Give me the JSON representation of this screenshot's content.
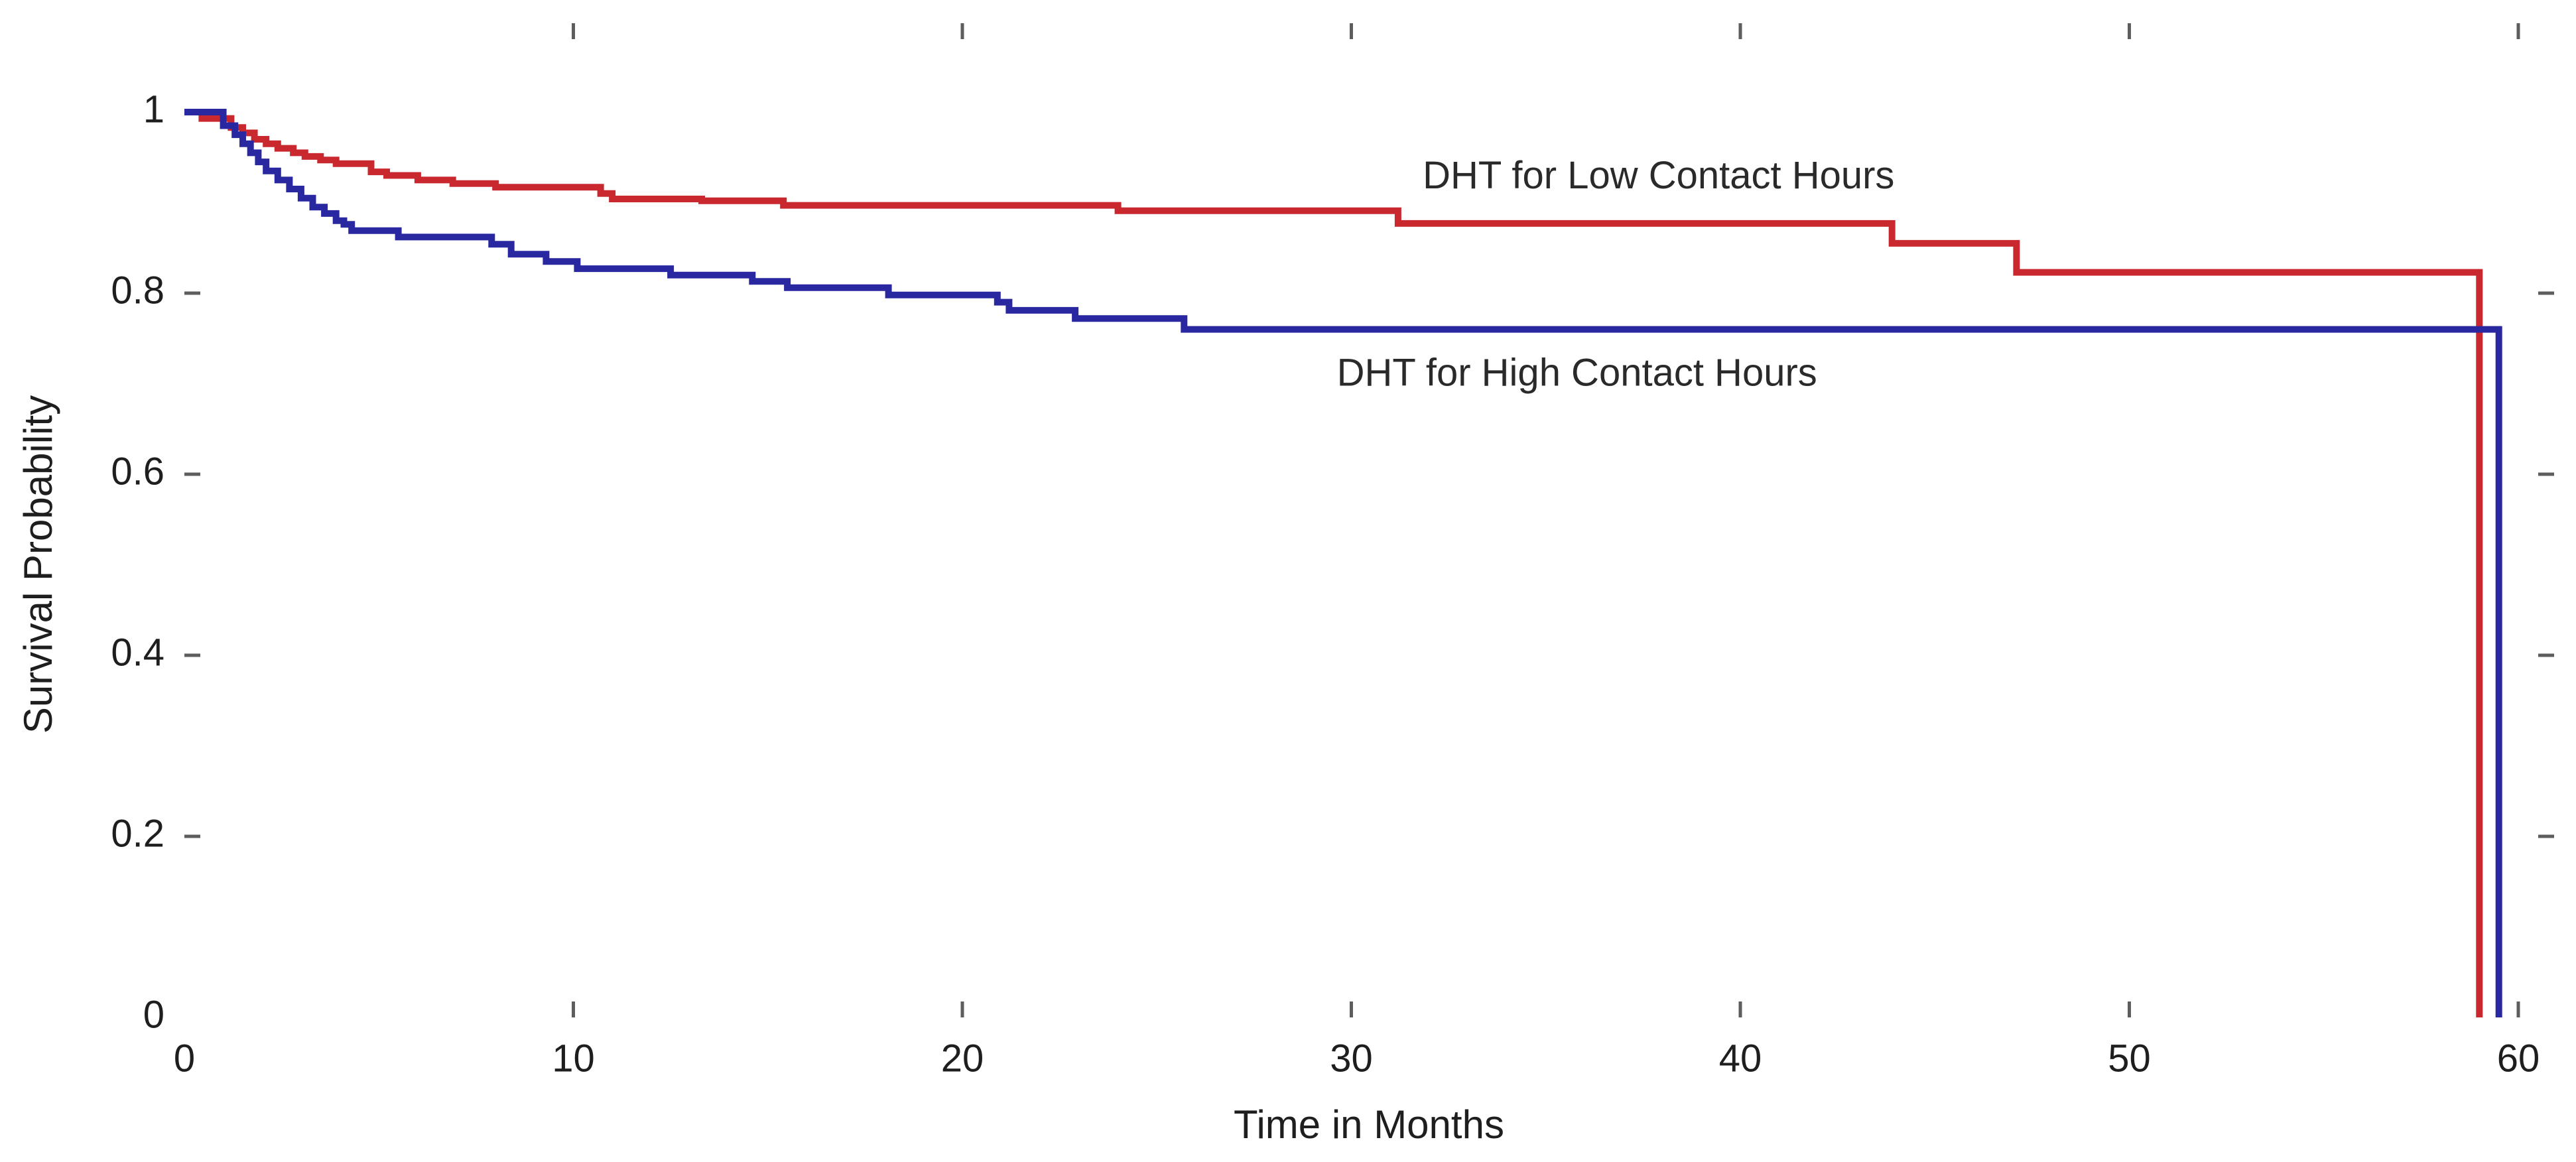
{
  "page": {
    "background_color": "#ffffff"
  },
  "chart_data": {
    "type": "line",
    "subtype": "kaplan-meier-step-survival",
    "title": "",
    "xlabel": "Time in Months",
    "ylabel": "Survival Probability",
    "grid": false,
    "legend_position": "inline-annotations",
    "frame": "closed-box-with-mirrored-inward-ticks",
    "axis_color": "#5d5d5d",
    "text_color": "#1e1e1e",
    "xlim": [
      0,
      60.9
    ],
    "ylim": [
      0,
      1.098
    ],
    "x_ticks": [
      {
        "label": "0",
        "value": 0
      },
      {
        "label": "10",
        "value": 10
      },
      {
        "label": "20",
        "value": 20
      },
      {
        "label": "30",
        "value": 30
      },
      {
        "label": "40",
        "value": 40
      },
      {
        "label": "50",
        "value": 50
      },
      {
        "label": "60",
        "value": 60
      }
    ],
    "y_ticks": [
      {
        "label": "0",
        "value": 0
      },
      {
        "label": "0.2",
        "value": 0.2
      },
      {
        "label": "0.4",
        "value": 0.4
      },
      {
        "label": "0.6",
        "value": 0.6
      },
      {
        "label": "0.8",
        "value": 0.8
      },
      {
        "label": "1",
        "value": 1
      }
    ],
    "series": [
      {
        "id": "low",
        "name": "DHT for Low Contact Hours",
        "color": "#c9282e",
        "steps": [
          [
            0,
            1.0
          ],
          [
            0.45,
            0.993
          ],
          [
            1.2,
            0.983
          ],
          [
            1.5,
            0.977
          ],
          [
            1.8,
            0.97
          ],
          [
            2.1,
            0.965
          ],
          [
            2.4,
            0.96
          ],
          [
            2.8,
            0.955
          ],
          [
            3.1,
            0.951
          ],
          [
            3.5,
            0.947
          ],
          [
            3.9,
            0.943
          ],
          [
            4.8,
            0.934
          ],
          [
            5.2,
            0.93
          ],
          [
            6.0,
            0.925
          ],
          [
            6.9,
            0.921
          ],
          [
            8.0,
            0.917
          ],
          [
            10.7,
            0.91
          ],
          [
            11.0,
            0.904
          ],
          [
            13.3,
            0.902
          ],
          [
            15.4,
            0.897
          ],
          [
            24.0,
            0.891
          ],
          [
            31.2,
            0.877
          ],
          [
            43.9,
            0.855
          ],
          [
            47.1,
            0.823
          ],
          [
            59.0,
            0.0
          ]
        ],
        "final_plateau_value": 0.823,
        "terminal_drop_month": 59.0
      },
      {
        "id": "high",
        "name": "DHT for High Contact Hours",
        "color": "#2a28a0",
        "steps": [
          [
            0,
            1.0
          ],
          [
            1.0,
            0.985
          ],
          [
            1.3,
            0.975
          ],
          [
            1.5,
            0.965
          ],
          [
            1.7,
            0.955
          ],
          [
            1.9,
            0.945
          ],
          [
            2.1,
            0.935
          ],
          [
            2.4,
            0.925
          ],
          [
            2.7,
            0.915
          ],
          [
            3.0,
            0.905
          ],
          [
            3.3,
            0.895
          ],
          [
            3.6,
            0.888
          ],
          [
            3.9,
            0.88
          ],
          [
            4.1,
            0.876
          ],
          [
            4.3,
            0.869
          ],
          [
            5.5,
            0.862
          ],
          [
            7.9,
            0.854
          ],
          [
            8.4,
            0.843
          ],
          [
            9.3,
            0.835
          ],
          [
            10.1,
            0.827
          ],
          [
            12.5,
            0.82
          ],
          [
            14.6,
            0.813
          ],
          [
            15.5,
            0.806
          ],
          [
            18.1,
            0.798
          ],
          [
            20.9,
            0.79
          ],
          [
            21.2,
            0.781
          ],
          [
            22.9,
            0.772
          ],
          [
            25.7,
            0.76
          ],
          [
            59.5,
            0.0
          ]
        ],
        "final_plateau_value": 0.76,
        "terminal_drop_month": 59.5
      }
    ],
    "annotations": [
      {
        "id": "low-label",
        "text": "DHT for Low Contact Hours",
        "month": 37.9,
        "value": 0.927
      },
      {
        "id": "high-label",
        "text": "DHT for High Contact Hours",
        "month": 35.8,
        "value": 0.709
      }
    ]
  }
}
